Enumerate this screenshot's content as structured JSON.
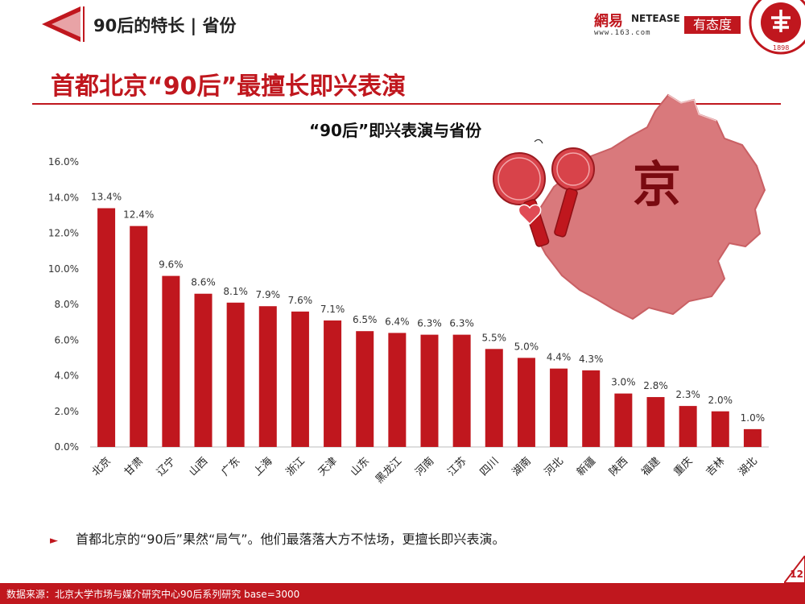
{
  "header": {
    "section_title": "90后的特长 | 省份",
    "logo_netease_cn": "網易",
    "logo_netease_en": "NETEASE",
    "logo_netease_url": "www.163.com",
    "logo_youtaidu": "有态度",
    "seal_year": "1898"
  },
  "main": {
    "title": "首都北京“90后”最擅长即兴表演",
    "map_character": "京"
  },
  "chart_data": {
    "type": "bar",
    "title": "“90后”即兴表演与省份",
    "categories": [
      "北京",
      "甘肃",
      "辽宁",
      "山西",
      "广东",
      "上海",
      "浙江",
      "天津",
      "山东",
      "黑龙江",
      "河南",
      "江苏",
      "四川",
      "湖南",
      "河北",
      "新疆",
      "陕西",
      "福建",
      "重庆",
      "吉林",
      "湖北"
    ],
    "values": [
      13.4,
      12.4,
      9.6,
      8.6,
      8.1,
      7.9,
      7.6,
      7.1,
      6.5,
      6.4,
      6.3,
      6.3,
      5.5,
      5.0,
      4.4,
      4.3,
      3.0,
      2.8,
      2.3,
      2.0,
      1.0
    ],
    "value_labels": [
      "13.4%",
      "12.4%",
      "9.6%",
      "8.6%",
      "8.1%",
      "7.9%",
      "7.6%",
      "7.1%",
      "6.5%",
      "6.4%",
      "6.3%",
      "6.3%",
      "5.5%",
      "5.0%",
      "4.4%",
      "4.3%",
      "3.0%",
      "2.8%",
      "2.3%",
      "2.0%",
      "1.0%"
    ],
    "yticks": [
      "0.0%",
      "2.0%",
      "4.0%",
      "6.0%",
      "8.0%",
      "10.0%",
      "12.0%",
      "14.0%",
      "16.0%"
    ],
    "ylim": [
      0,
      16
    ],
    "bar_color": "#c0171e",
    "grid": false
  },
  "bullet": {
    "text": "首都北京的“90后”果然“局气”。他们最落落大方不怯场，更擅长即兴表演。"
  },
  "footer": {
    "source": "数据来源：北京大学市场与媒介研究中心90后系列研究 base=3000",
    "page_number": "12"
  },
  "colors": {
    "accent": "#c0171e",
    "map_fill": "#d9797c"
  }
}
